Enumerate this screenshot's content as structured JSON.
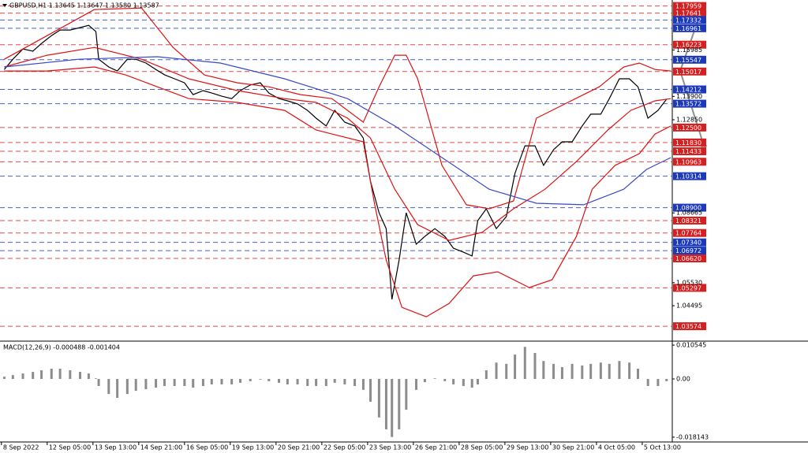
{
  "chart_data": [
    {
      "type": "line",
      "title": "GBPUSD,H1  1.13645 1.13647 1.13580 1.13587",
      "xlim": [
        0,
        470
      ],
      "ylim": [
        1.0294,
        1.1823
      ],
      "yticks": [
        {
          "value": 1.15985,
          "label": "1.15985"
        },
        {
          "value": 1.139,
          "label": "1.13900"
        },
        {
          "value": 1.1285,
          "label": "1.12850"
        },
        {
          "value": 1.08665,
          "label": "1.08665"
        },
        {
          "value": 1.0553,
          "label": "1.05530"
        },
        {
          "value": 1.04495,
          "label": "1.04495"
        }
      ],
      "levels": [
        {
          "value": 1.17959,
          "label": "1.17959",
          "color": "#d42020"
        },
        {
          "value": 1.17641,
          "label": "1.17641",
          "color": "#d42020"
        },
        {
          "value": 1.17332,
          "label": "1.17332",
          "color": "#1c39bb"
        },
        {
          "value": 1.16961,
          "label": "1.16961",
          "color": "#1c39bb"
        },
        {
          "value": 1.16223,
          "label": "1.16223",
          "color": "#d42020"
        },
        {
          "value": 1.15547,
          "label": "1.15547",
          "color": "#1c39bb"
        },
        {
          "value": 1.15017,
          "label": "1.15017",
          "color": "#d42020"
        },
        {
          "value": 1.14212,
          "label": "1.14212",
          "color": "#1c39bb"
        },
        {
          "value": 1.13572,
          "label": "1.13572",
          "color": "#1c39bb"
        },
        {
          "value": 1.125,
          "label": "1.12500",
          "color": "#d42020"
        },
        {
          "value": 1.1183,
          "label": "1.11830",
          "color": "#d42020"
        },
        {
          "value": 1.11433,
          "label": "1.11433",
          "color": "#d42020"
        },
        {
          "value": 1.10963,
          "label": "1.10963",
          "color": "#d42020"
        },
        {
          "value": 1.10314,
          "label": "1.10314",
          "color": "#1c39bb"
        },
        {
          "value": 1.089,
          "label": "1.08900",
          "color": "#1c39bb"
        },
        {
          "value": 1.08321,
          "label": "1.08321",
          "color": "#d42020"
        },
        {
          "value": 1.07764,
          "label": "1.07764",
          "color": "#d42020"
        },
        {
          "value": 1.0734,
          "label": "1.07340",
          "color": "#1c39bb"
        },
        {
          "value": 1.06972,
          "label": "1.06972",
          "color": "#1c39bb"
        },
        {
          "value": 1.0662,
          "label": "1.06620",
          "color": "#d42020"
        },
        {
          "value": 1.05297,
          "label": "1.05297",
          "color": "#d42020"
        },
        {
          "value": 1.03574,
          "label": "1.03574",
          "color": "#d42020"
        }
      ],
      "series": [
        {
          "color": "#000000",
          "x": [
            3,
            9,
            16,
            23,
            29,
            36,
            42,
            49,
            56,
            62,
            67,
            69,
            76,
            82,
            89,
            95,
            102,
            109,
            115,
            122,
            129,
            135,
            142,
            148,
            155,
            162,
            168,
            175,
            182,
            188,
            195,
            201,
            208,
            215,
            221,
            228,
            234,
            241,
            248,
            254,
            259,
            265,
            270,
            274,
            279,
            284,
            291,
            297,
            304,
            311,
            317,
            324,
            330,
            334,
            340,
            347,
            354,
            360,
            367,
            374,
            380,
            387,
            393,
            400,
            407,
            413,
            420,
            426,
            433,
            440,
            446,
            453,
            460,
            466
          ],
          "values": [
            1.1511,
            1.1557,
            1.1603,
            1.1593,
            1.1628,
            1.1663,
            1.1688,
            1.1688,
            1.1699,
            1.1709,
            1.1681,
            1.1557,
            1.1522,
            1.1504,
            1.1557,
            1.1557,
            1.154,
            1.1511,
            1.1487,
            1.1469,
            1.1451,
            1.1398,
            1.1416,
            1.1405,
            1.1391,
            1.138,
            1.1416,
            1.1441,
            1.1451,
            1.1405,
            1.138,
            1.137,
            1.1356,
            1.1327,
            1.1292,
            1.1257,
            1.1327,
            1.1274,
            1.1257,
            1.1203,
            1.1009,
            1.0867,
            1.0796,
            1.0478,
            1.0655,
            1.0867,
            1.0726,
            1.0761,
            1.0796,
            1.0761,
            1.0708,
            1.069,
            1.0673,
            1.0832,
            1.0885,
            1.0796,
            1.085,
            1.1044,
            1.1168,
            1.1168,
            1.108,
            1.115,
            1.1186,
            1.1186,
            1.1257,
            1.131,
            1.131,
            1.138,
            1.1469,
            1.1469,
            1.1433,
            1.1292,
            1.1327,
            1.1377
          ]
        },
        {
          "color": "#e01010",
          "x": [
            3,
            33,
            66,
            99,
            121,
            143,
            166,
            188,
            210,
            232,
            254,
            265,
            276,
            284,
            292,
            309,
            326,
            342,
            359,
            375,
            397,
            419,
            436,
            447,
            458,
            469
          ],
          "values": [
            1.1557,
            1.1663,
            1.178,
            1.1787,
            1.161,
            1.1486,
            1.1451,
            1.1433,
            1.1398,
            1.138,
            1.1274,
            1.1433,
            1.1575,
            1.1575,
            1.1469,
            1.108,
            1.0903,
            1.0885,
            1.092,
            1.1292,
            1.1363,
            1.1433,
            1.1522,
            1.154,
            1.1511,
            1.1504
          ]
        },
        {
          "color": "#e01010",
          "x": [
            3,
            33,
            66,
            99,
            132,
            166,
            199,
            221,
            243,
            259,
            276,
            292,
            314,
            337,
            359,
            381,
            403,
            425,
            441,
            458,
            469
          ],
          "values": [
            1.1522,
            1.1575,
            1.161,
            1.1557,
            1.1469,
            1.1416,
            1.138,
            1.1363,
            1.1292,
            1.1203,
            1.0973,
            1.0814,
            1.0743,
            1.0779,
            1.0885,
            1.0973,
            1.1097,
            1.1239,
            1.1327,
            1.137,
            1.138
          ]
        },
        {
          "color": "#e01010",
          "x": [
            3,
            33,
            66,
            88,
            110,
            132,
            166,
            199,
            221,
            232,
            254,
            262,
            270,
            281,
            298,
            314,
            331,
            348,
            370,
            386,
            403,
            414,
            430,
            447,
            458,
            469
          ],
          "values": [
            1.1504,
            1.1504,
            1.1522,
            1.1486,
            1.1433,
            1.138,
            1.1363,
            1.1327,
            1.1239,
            1.1221,
            1.1186,
            1.0903,
            1.0655,
            1.0442,
            1.04,
            1.046,
            1.0584,
            1.0602,
            1.0531,
            1.0566,
            1.0761,
            1.0973,
            1.108,
            1.1133,
            1.1221,
            1.1257
          ]
        },
        {
          "color": "#3848c8",
          "x": [
            3,
            55,
            110,
            154,
            199,
            243,
            276,
            309,
            342,
            375,
            408,
            436,
            452,
            469
          ],
          "values": [
            1.1522,
            1.1557,
            1.1568,
            1.154,
            1.1469,
            1.138,
            1.1257,
            1.1115,
            1.0973,
            1.091,
            1.0903,
            1.0973,
            1.1062,
            1.1115
          ]
        }
      ]
    },
    {
      "type": "bar",
      "title": "MACD(12,26,9) -0.000488 -0.001404",
      "xlim": [
        0,
        470
      ],
      "ylim": [
        -0.0194,
        0.0113
      ],
      "yticks": [
        0.010545,
        {
          "value": 0,
          "label": "0.00"
        },
        -0.018143
      ],
      "xticks": [
        {
          "value": 1,
          "label": "8 Sep 2022"
        },
        {
          "value": 33,
          "label": "12 Sep 05:00"
        },
        {
          "value": 65,
          "label": "13 Sep 13:00"
        },
        {
          "value": 97,
          "label": "14 Sep 21:00"
        },
        {
          "value": 129,
          "label": "16 Sep 05:00"
        },
        {
          "value": 161,
          "label": "19 Sep 13:00"
        },
        {
          "value": 193,
          "label": "20 Sep 21:00"
        },
        {
          "value": 225,
          "label": "22 Sep 05:00"
        },
        {
          "value": 257,
          "label": "23 Sep 13:00"
        },
        {
          "value": 289,
          "label": "26 Sep 21:00"
        },
        {
          "value": 321,
          "label": "28 Sep 05:00"
        },
        {
          "value": 353,
          "label": "29 Sep 13:00"
        },
        {
          "value": 385,
          "label": "30 Sep 21:00"
        },
        {
          "value": 417,
          "label": "4 Oct 05:00"
        },
        {
          "value": 449,
          "label": "5 Oct 13:00"
        }
      ],
      "series": [
        {
          "color": "#8c8c8c",
          "x": [
            3,
            9,
            16,
            23,
            29,
            36,
            42,
            49,
            56,
            62,
            67,
            69,
            76,
            82,
            89,
            95,
            102,
            109,
            115,
            122,
            129,
            135,
            142,
            148,
            155,
            162,
            168,
            175,
            182,
            188,
            195,
            201,
            208,
            215,
            221,
            228,
            234,
            241,
            248,
            254,
            259,
            265,
            270,
            274,
            279,
            284,
            291,
            297,
            304,
            311,
            317,
            324,
            330,
            334,
            340,
            347,
            354,
            360,
            367,
            374,
            380,
            387,
            393,
            400,
            407,
            413,
            420,
            426,
            433,
            440,
            446,
            453,
            460,
            466
          ],
          "values": [
            0.0007,
            0.0012,
            0.0017,
            0.0022,
            0.0027,
            0.0032,
            0.0032,
            0.0027,
            0.0022,
            0.0017,
            0.0002,
            -0.0022,
            -0.0047,
            -0.0059,
            -0.0047,
            -0.0037,
            -0.0032,
            -0.0027,
            -0.0022,
            -0.0022,
            -0.0022,
            -0.0027,
            -0.0022,
            -0.0017,
            -0.0017,
            -0.0017,
            -0.0012,
            -0.0007,
            -0.0002,
            -0.0007,
            -0.0012,
            -0.0017,
            -0.0017,
            -0.0022,
            -0.0022,
            -0.0022,
            -0.0012,
            -0.0017,
            -0.0022,
            -0.0034,
            -0.0071,
            -0.012,
            -0.0157,
            -0.0181,
            -0.0157,
            -0.0096,
            -0.0034,
            -0.001,
            0.0002,
            -0.0007,
            -0.0017,
            -0.0022,
            -0.0027,
            -0.0017,
            0.0027,
            0.0051,
            0.0047,
            0.0076,
            0.01,
            0.0081,
            0.0056,
            0.0047,
            0.0037,
            0.0047,
            0.0042,
            0.0047,
            0.0051,
            0.0047,
            0.0056,
            0.0051,
            0.0032,
            -0.0022,
            -0.0022,
            -0.0007
          ]
        }
      ]
    }
  ]
}
